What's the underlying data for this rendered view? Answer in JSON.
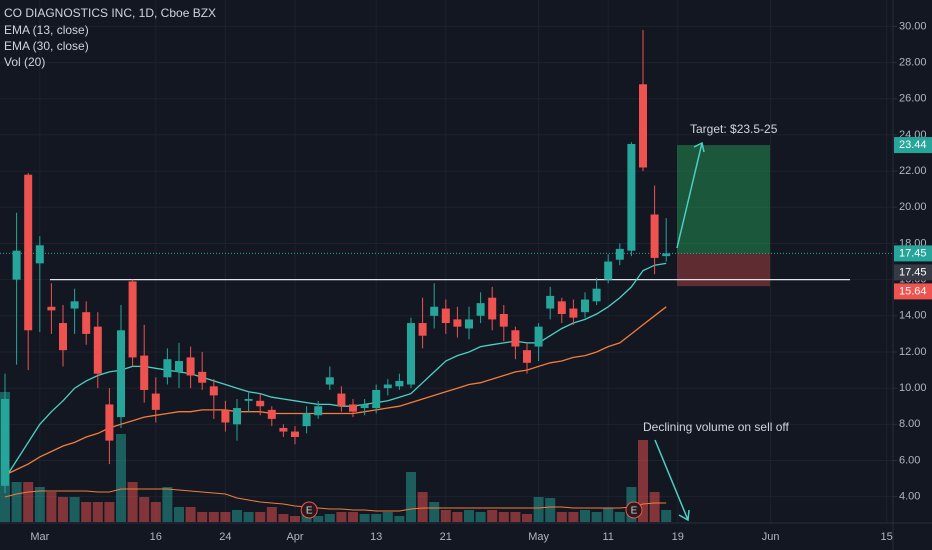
{
  "chart_data": {
    "type": "candlestick",
    "title": "CO DIAGNOSTICS INC, 1D, Cboe BZX",
    "categories": [
      null,
      null,
      null,
      "Mar",
      null,
      null,
      null,
      null,
      null,
      null,
      null,
      null,
      null,
      "16",
      null,
      null,
      null,
      null,
      null,
      "24",
      null,
      null,
      null,
      null,
      null,
      "Apr",
      null,
      null,
      null,
      null,
      null,
      null,
      "13",
      null,
      null,
      null,
      null,
      null,
      "21",
      null,
      null,
      null,
      null,
      null,
      null,
      null,
      "May",
      null,
      null,
      null,
      null,
      null,
      "11",
      null,
      null,
      null,
      null,
      null,
      "19",
      null,
      null,
      null,
      null,
      null,
      null,
      null,
      "Jun",
      null,
      null,
      null,
      null,
      null,
      null,
      null,
      null,
      null,
      "15"
    ],
    "open": [
      4.6,
      16.0,
      21.8,
      16.9,
      14.5,
      13.6,
      14.4,
      14.2,
      13.4,
      9.1,
      8.4,
      15.9,
      11.8,
      9.7,
      10.6,
      10.9,
      11.7,
      10.9,
      10.1,
      8.8,
      8.0,
      9.3,
      9.3,
      8.8,
      7.8,
      7.6,
      7.9,
      8.5,
      10.2,
      9.7,
      9.1,
      8.9,
      8.9,
      10.0,
      10.1,
      10.2,
      13.6,
      14.0,
      14.4,
      13.8,
      13.3,
      14.0,
      15.0,
      14.1,
      13.2,
      12.1,
      12.3,
      14.4,
      14.8,
      14.4,
      14.2,
      14.8,
      16.0,
      17.1,
      17.6,
      26.8,
      19.6,
      17.3,
      null,
      null,
      null,
      null,
      null,
      null,
      null,
      null,
      null,
      null,
      null,
      null,
      null,
      null,
      null,
      null,
      null,
      null,
      null
    ],
    "high": [
      10.8,
      19.7,
      21.9,
      18.4,
      15.8,
      14.6,
      15.5,
      14.8,
      14.2,
      10.0,
      14.6,
      16.0,
      13.5,
      10.6,
      12.2,
      12.5,
      12.3,
      12.0,
      10.5,
      9.3,
      9.4,
      9.8,
      9.7,
      9.0,
      8.0,
      7.9,
      9.0,
      9.3,
      11.2,
      10.1,
      9.4,
      9.4,
      10.2,
      10.5,
      10.8,
      13.9,
      15.0,
      15.8,
      14.9,
      14.5,
      14.5,
      15.3,
      15.6,
      14.6,
      13.4,
      12.5,
      13.6,
      15.6,
      15.0,
      14.9,
      15.3,
      16.1,
      17.4,
      18.0,
      23.6,
      29.8,
      21.2,
      19.4,
      null,
      null,
      null,
      null,
      null,
      null,
      null,
      null,
      null,
      null,
      null,
      null,
      null,
      null,
      null,
      null,
      null,
      null,
      null
    ],
    "low": [
      4.2,
      11.3,
      11.0,
      13.1,
      13.0,
      11.2,
      13.0,
      12.4,
      10.0,
      5.8,
      7.8,
      11.2,
      9.2,
      8.1,
      10.2,
      10.0,
      10.0,
      9.9,
      8.3,
      7.6,
      7.1,
      8.7,
      8.5,
      7.9,
      7.3,
      6.9,
      7.5,
      8.3,
      9.9,
      8.7,
      8.4,
      8.5,
      8.6,
      9.6,
      9.9,
      10.0,
      12.2,
      13.3,
      13.0,
      12.8,
      12.7,
      13.6,
      13.2,
      12.6,
      11.6,
      10.8,
      11.5,
      13.8,
      13.6,
      13.5,
      13.9,
      14.6,
      15.8,
      16.8,
      17.3,
      22.0,
      16.3,
      17.0,
      null,
      null,
      null,
      null,
      null,
      null,
      null,
      null,
      null,
      null,
      null,
      null,
      null,
      null,
      null,
      null,
      null,
      null,
      null
    ],
    "close": [
      9.4,
      17.6,
      13.2,
      17.9,
      14.3,
      12.1,
      14.8,
      13.0,
      10.8,
      7.1,
      13.2,
      11.7,
      9.9,
      8.8,
      11.6,
      11.5,
      10.7,
      10.3,
      9.6,
      8.1,
      8.9,
      9.4,
      9.0,
      8.3,
      7.6,
      7.3,
      8.6,
      9.0,
      10.6,
      9.0,
      8.7,
      9.1,
      9.9,
      10.2,
      10.4,
      13.6,
      12.9,
      14.5,
      13.6,
      13.4,
      13.8,
      14.7,
      13.8,
      13.4,
      12.3,
      11.4,
      13.4,
      15.1,
      14.1,
      13.9,
      14.9,
      15.5,
      17.0,
      17.7,
      23.5,
      22.2,
      17.2,
      17.45,
      null,
      null,
      null,
      null,
      null,
      null,
      null,
      null,
      null,
      null,
      null,
      null,
      null,
      null,
      null,
      null,
      null,
      null,
      null
    ],
    "up_color": "#26a69a",
    "down_color": "#ef5350",
    "series": [
      {
        "name": "EMA (13, close)",
        "color": "#4dd0c4",
        "values": [
          5.0,
          6.0,
          7.0,
          8.0,
          8.7,
          9.3,
          10.0,
          10.4,
          10.7,
          10.9,
          11.0,
          11.2,
          11.2,
          11.1,
          11.0,
          10.9,
          10.8,
          10.6,
          10.4,
          10.2,
          10.0,
          9.8,
          9.7,
          9.5,
          9.4,
          9.3,
          9.2,
          9.1,
          9.1,
          9.0,
          9.0,
          9.1,
          9.2,
          9.3,
          9.5,
          9.7,
          10.3,
          10.9,
          11.5,
          11.8,
          12.0,
          12.3,
          12.4,
          12.5,
          12.6,
          12.5,
          12.5,
          12.9,
          13.3,
          13.6,
          13.8,
          14.1,
          14.5,
          15.0,
          15.6,
          16.5,
          16.8,
          16.9,
          null,
          null,
          null,
          null,
          null,
          null,
          null,
          null,
          null,
          null,
          null,
          null,
          null,
          null,
          null,
          null,
          null,
          null,
          null
        ]
      },
      {
        "name": "EMA (30, close)",
        "color": "#f57c3a",
        "values": [
          5.2,
          5.5,
          5.8,
          6.2,
          6.5,
          6.8,
          7.0,
          7.3,
          7.5,
          7.8,
          8.0,
          8.2,
          8.4,
          8.5,
          8.6,
          8.7,
          8.7,
          8.8,
          8.8,
          8.8,
          8.7,
          8.7,
          8.7,
          8.6,
          8.6,
          8.6,
          8.6,
          8.6,
          8.6,
          8.6,
          8.6,
          8.7,
          8.8,
          8.9,
          9.0,
          9.2,
          9.4,
          9.6,
          9.8,
          10.0,
          10.2,
          10.3,
          10.5,
          10.7,
          10.9,
          11.0,
          11.2,
          11.4,
          11.5,
          11.7,
          11.8,
          12.0,
          12.3,
          12.5,
          13.0,
          13.5,
          14.0,
          14.5,
          null,
          null,
          null,
          null,
          null,
          null,
          null,
          null,
          null,
          null,
          null,
          null,
          null,
          null,
          null,
          null,
          null,
          null,
          null
        ]
      }
    ],
    "volume": {
      "name": "Vol (20)",
      "ma_color": "#f57c3a",
      "ylim": [
        0,
        150
      ],
      "values": [
        130,
        40,
        40,
        35,
        30,
        25,
        25,
        20,
        20,
        20,
        88,
        40,
        25,
        20,
        35,
        15,
        15,
        10,
        10,
        10,
        12,
        10,
        10,
        15,
        8,
        6,
        10,
        6,
        8,
        10,
        10,
        8,
        8,
        10,
        6,
        50,
        30,
        20,
        12,
        10,
        12,
        10,
        12,
        10,
        10,
        8,
        25,
        24,
        10,
        10,
        12,
        10,
        14,
        10,
        35,
        82,
        30,
        12,
        null,
        null,
        null,
        null,
        null,
        null,
        null,
        null,
        null,
        null,
        null,
        null,
        null,
        null,
        null,
        null,
        null,
        null,
        null
      ],
      "ma": [
        25,
        28,
        30,
        31,
        31,
        31,
        31,
        31,
        30,
        30,
        33,
        33,
        33,
        33,
        33,
        32,
        31,
        30,
        29,
        28,
        24,
        22,
        20,
        19,
        18,
        16,
        15,
        14,
        13,
        13,
        12,
        12,
        11,
        11,
        11,
        13,
        14,
        14,
        14,
        14,
        14,
        14,
        14,
        14,
        14,
        14,
        14,
        15,
        15,
        14,
        14,
        14,
        14,
        14,
        15,
        18,
        19,
        19,
        null,
        null,
        null,
        null,
        null,
        null,
        null,
        null,
        null,
        null,
        null,
        null,
        null,
        null,
        null,
        null,
        null,
        null,
        null
      ]
    },
    "ylim": [
      2.6,
      31.46
    ],
    "yticks": [
      {
        "value": 4,
        "label": "4.00"
      },
      {
        "value": 6,
        "label": "6.00"
      },
      {
        "value": 8,
        "label": "8.00"
      },
      {
        "value": 10,
        "label": "10.00"
      },
      {
        "value": 12,
        "label": "12.00"
      },
      {
        "value": 14,
        "label": "14.00"
      },
      {
        "value": 16,
        "label": "16.00"
      },
      {
        "value": 18,
        "label": "18.00"
      },
      {
        "value": 20,
        "label": "20.00"
      },
      {
        "value": 22,
        "label": "22.00"
      },
      {
        "value": 24,
        "label": "24.00"
      },
      {
        "value": 26,
        "label": "26.00"
      },
      {
        "value": 28,
        "label": "28.00"
      },
      {
        "value": 30,
        "label": "30.00"
      }
    ],
    "grid": true,
    "price_tags": [
      {
        "value": 23.44,
        "label": "23.44",
        "color": "#26a69a"
      },
      {
        "value": 17.45,
        "label": "17.45",
        "color": "#26a69a"
      },
      {
        "value": 17.45,
        "label": "17.45",
        "color": "#363a45"
      },
      {
        "value": 15.64,
        "label": "15.64",
        "color": "#ef5350"
      }
    ],
    "position_tool": {
      "target": 23.44,
      "entry": 17.45,
      "stop": 15.64
    },
    "support_line": 16,
    "earnings_marker": "E",
    "annotations": [
      "Target: $23.5-25",
      "Declining volume on sell off"
    ]
  }
}
